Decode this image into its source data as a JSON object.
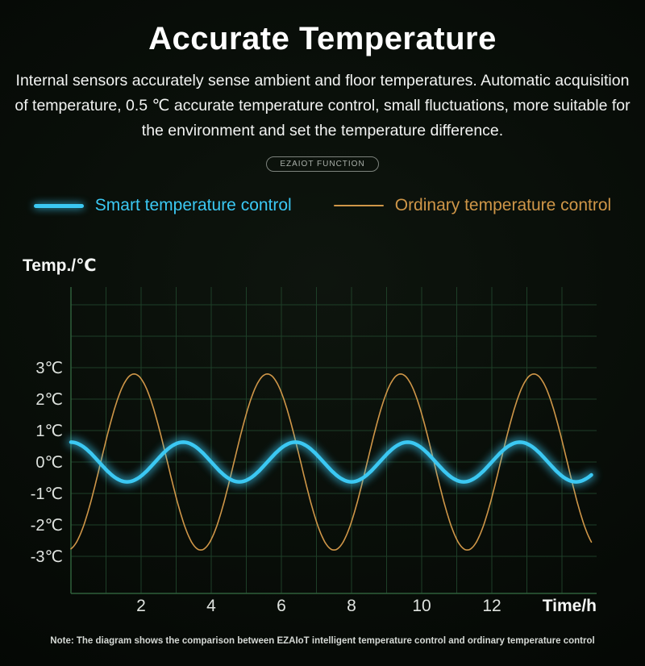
{
  "header": {
    "title": "Accurate Temperature",
    "description": "Internal sensors accurately sense ambient and floor temperatures. Automatic acquisition of temperature, 0.5 ℃ accurate temperature control, small fluctuations, more suitable for the environment and set the temperature difference.",
    "badge": "EZAIOT FUNCTION"
  },
  "legend": {
    "items": [
      {
        "label": "Smart temperature control",
        "color": "#3bc8f3",
        "style": "thick-glow"
      },
      {
        "label": "Ordinary temperature control",
        "color": "#cf9648",
        "style": "thin"
      }
    ]
  },
  "chart_data": {
    "type": "line",
    "title": "",
    "xlabel": "Time/h",
    "ylabel": "Temp./℃",
    "x_ticks": [
      2,
      4,
      6,
      8,
      10,
      12
    ],
    "y_ticks": [
      3,
      2,
      1,
      0,
      -1,
      -2,
      -3
    ],
    "y_tick_suffix": "℃",
    "x_range": [
      0,
      14.87
    ],
    "ylim": [
      -4.1,
      5.6
    ],
    "grid": true,
    "grid_h_lines": [
      -3,
      -2,
      -1,
      0,
      1,
      2,
      3,
      4,
      5
    ],
    "grid_v_step_h": 1,
    "legend_position": "top",
    "series": [
      {
        "name": "Smart temperature control",
        "color": "#3bc8f3",
        "waveform": "cosine",
        "amplitude": 0.63,
        "period_h": 3.2,
        "peak_at_h": 0,
        "mean": 0,
        "line_width": 4.5,
        "glow": true
      },
      {
        "name": "Ordinary temperature control",
        "color": "#cf9648",
        "waveform": "cosine",
        "amplitude": 2.8,
        "period_h": 3.8,
        "peak_at_h": 1.8,
        "mean": 0,
        "line_width": 1.6,
        "glow": false
      }
    ]
  },
  "footer": {
    "note": "Note: The diagram shows the comparison between EZAIoT intelligent temperature control and ordinary temperature control"
  },
  "colors": {
    "background": "#070c07",
    "grid": "#1e3f28",
    "axis": "#2f5f3a",
    "tick_text": "#dfe3df",
    "axis_label_text": "#f4f6f4"
  }
}
